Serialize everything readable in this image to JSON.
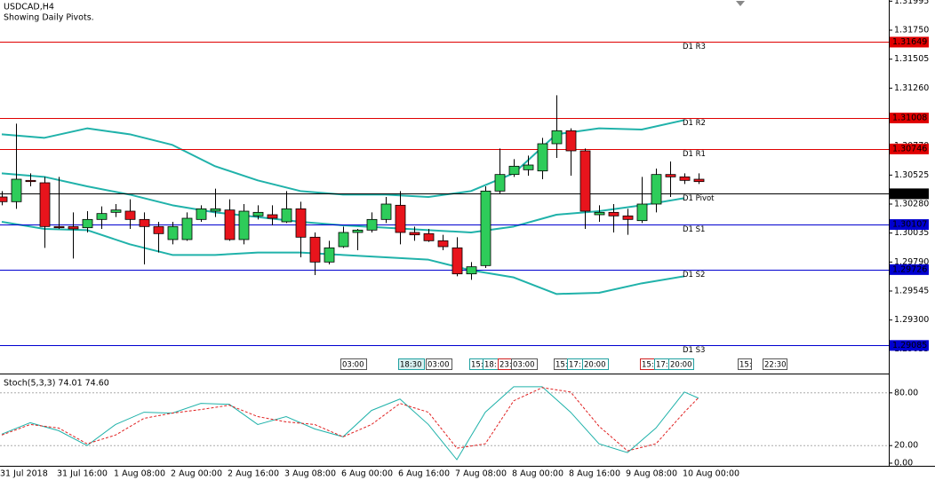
{
  "chart_data": [
    {
      "type": "candlestick",
      "title": "USDCAD,H4",
      "subtitle": "Showing Daily Pivots.",
      "categories": [
        "31 Jul 2018",
        null,
        null,
        null,
        "31 Jul 16:00",
        null,
        null,
        null,
        "1 Aug 08:00",
        null,
        null,
        null,
        "2 Aug 00:00",
        null,
        null,
        null,
        "2 Aug 16:00",
        null,
        null,
        null,
        "3 Aug 08:00",
        null,
        null,
        null,
        "6 Aug 00:00",
        null,
        null,
        null,
        "6 Aug 16:00",
        null,
        null,
        null,
        "7 Aug 08:00",
        null,
        null,
        null,
        "8 Aug 00:00",
        null,
        null,
        null,
        "8 Aug 16:00",
        null,
        null,
        null,
        "9 Aug 08:00",
        null,
        null,
        null,
        "10 Aug 00:00",
        null
      ],
      "open": [
        1.3034,
        1.303,
        1.3048,
        1.3046,
        1.3009,
        1.3009,
        1.3008,
        1.3015,
        1.3021,
        1.3022,
        1.3015,
        1.3009,
        1.2998,
        1.2998,
        1.3015,
        1.3022,
        1.3023,
        1.2998,
        1.3018,
        1.3019,
        1.3013,
        1.3024,
        1.3,
        1.2979,
        1.2992,
        1.3004,
        1.3006,
        1.3015,
        1.3027,
        1.3004,
        1.3003,
        1.2997,
        1.2991,
        1.2969,
        1.2976,
        1.3039,
        1.3053,
        1.3057,
        1.3056,
        1.3079,
        1.309,
        1.3073,
        1.3019,
        1.3021,
        1.3018,
        1.3014,
        1.3028,
        1.3053,
        1.3051,
        1.3049
      ],
      "high": [
        1.3039,
        1.3096,
        1.3054,
        1.3051,
        1.3051,
        1.3021,
        1.3022,
        1.3026,
        1.3028,
        1.3032,
        1.3021,
        1.3013,
        1.3013,
        1.3021,
        1.3027,
        1.3041,
        1.3032,
        1.3028,
        1.3027,
        1.3027,
        1.3039,
        1.303,
        1.3004,
        1.2997,
        1.3009,
        1.3007,
        1.3021,
        1.3034,
        1.3039,
        1.3009,
        1.3007,
        1.3002,
        1.3,
        1.2979,
        1.3043,
        1.3075,
        1.3066,
        1.3069,
        1.3084,
        1.312,
        1.3092,
        1.3075,
        1.3027,
        1.3028,
        1.3024,
        1.3051,
        1.3058,
        1.3064,
        1.3054,
        1.3054
      ],
      "low": [
        1.3027,
        1.3024,
        1.3043,
        1.2991,
        1.3007,
        1.2982,
        1.3004,
        1.3007,
        1.3017,
        1.3007,
        1.2977,
        1.2987,
        1.2994,
        1.2997,
        1.3013,
        1.3017,
        1.2997,
        1.2994,
        1.3015,
        1.301,
        1.3012,
        1.2983,
        1.2968,
        1.2977,
        1.2991,
        1.2989,
        1.3004,
        1.3012,
        1.2994,
        1.2997,
        1.2996,
        1.2989,
        1.2967,
        1.2964,
        1.2974,
        1.3037,
        1.3051,
        1.3052,
        1.3049,
        1.3067,
        1.3052,
        1.3007,
        1.3013,
        1.3004,
        1.3002,
        1.3012,
        1.3021,
        1.3034,
        1.3045,
        1.3045
      ],
      "close": [
        1.303,
        1.3049,
        1.3047,
        1.3009,
        1.3008,
        1.3007,
        1.3015,
        1.302,
        1.3023,
        1.3015,
        1.3009,
        1.3003,
        1.3009,
        1.3016,
        1.3024,
        1.3024,
        1.2998,
        1.3022,
        1.3021,
        1.3016,
        1.3024,
        1.3,
        1.2979,
        1.2991,
        1.3004,
        1.3006,
        1.3015,
        1.3028,
        1.3004,
        1.3002,
        1.2997,
        1.2992,
        1.2969,
        1.2975,
        1.3039,
        1.3053,
        1.306,
        1.3061,
        1.3079,
        1.309,
        1.3073,
        1.3022,
        1.3021,
        1.3018,
        1.3015,
        1.3028,
        1.3053,
        1.3051,
        1.3048,
        1.3047
      ],
      "up_color": "#2ecc5a",
      "down_color": "#e8141c",
      "ylim": [
        1.28855,
        1.32005
      ],
      "yticks": [
        1.31995,
        {
          "value": 1.3175,
          "label": "1.31750"
        },
        1.31505,
        {
          "value": 1.3126,
          "label": "1.31260"
        },
        1.31015,
        {
          "value": 1.3077,
          "label": "1.30770"
        },
        1.30525,
        {
          "value": 1.3028,
          "label": "1.30280"
        },
        1.30035,
        {
          "value": 1.2979,
          "label": "1.29790"
        },
        1.29545,
        {
          "value": 1.293,
          "label": "1.29300"
        },
        1.29055
      ],
      "bands": {
        "color": "#20b2aa",
        "x": [
          0,
          3,
          6,
          9,
          12,
          15,
          18,
          21,
          24,
          27,
          30,
          33,
          36,
          39,
          42,
          45,
          48
        ],
        "upper": [
          1.3087,
          1.3084,
          1.3092,
          1.3087,
          1.3078,
          1.306,
          1.3048,
          1.3039,
          1.3036,
          1.3036,
          1.3034,
          1.3039,
          1.3054,
          1.3087,
          1.3092,
          1.3091,
          1.3099
        ],
        "middle": [
          1.3054,
          1.3051,
          1.3043,
          1.3036,
          1.3027,
          1.3021,
          1.3017,
          1.3013,
          1.301,
          1.3008,
          1.3006,
          1.3004,
          1.3009,
          1.3019,
          1.3022,
          1.3027,
          1.3033
        ],
        "lower": [
          1.3013,
          1.3007,
          1.3006,
          1.2994,
          1.2985,
          1.2985,
          1.2987,
          1.2987,
          1.2985,
          1.2983,
          1.2981,
          1.2972,
          1.2966,
          1.2952,
          1.2953,
          1.2961,
          1.2967
        ]
      },
      "pivots": [
        {
          "label": "D1 R3",
          "value": 1.31649,
          "color": "#e00000"
        },
        {
          "label": "D1 R2",
          "value": 1.31008,
          "color": "#e00000"
        },
        {
          "label": "D1 R1",
          "value": 1.30746,
          "color": "#e00000"
        },
        {
          "label": "D1 Pivot",
          "value": 1.30367,
          "color": "#000000"
        },
        {
          "label": "D1 S1",
          "value": 1.30107,
          "color": "#0000d0"
        },
        {
          "label": "D1 S2",
          "value": 1.29726,
          "color": "#0000d0"
        },
        {
          "label": "D1 S3",
          "value": 1.29085,
          "color": "#0000d0"
        }
      ],
      "session_labels": [
        "03:00",
        "18:30",
        "03:00",
        "15:",
        "18:",
        "23:",
        "03:00",
        "15:",
        "17:",
        "20:00",
        "15:",
        "17:",
        "20:00",
        "15:",
        "22:30"
      ]
    },
    {
      "type": "line",
      "title": "Stoch(5,3,3) 74.01 74.60",
      "x": [
        0,
        2,
        4,
        6,
        8,
        10,
        12,
        14,
        16,
        18,
        20,
        22,
        24,
        26,
        28,
        30,
        32,
        34,
        36,
        38,
        40,
        42,
        44,
        46,
        48,
        49
      ],
      "series": [
        {
          "color": "#20b2aa",
          "values": [
            33,
            46,
            37,
            20,
            44,
            58,
            57,
            68,
            67,
            44,
            53,
            39,
            30,
            60,
            73,
            44,
            4,
            58,
            87,
            87,
            58,
            22,
            12,
            40,
            81,
            74.01
          ]
        },
        {
          "color": "#e02020",
          "dashed": true,
          "values": [
            32,
            44,
            40,
            22,
            32,
            51,
            57,
            61,
            66,
            53,
            47,
            44,
            30,
            44,
            68,
            58,
            17,
            22,
            71,
            86,
            81,
            42,
            14,
            22,
            58,
            74.6
          ]
        }
      ],
      "ylim": [
        0,
        100
      ],
      "yticks": [
        {
          "value": 80,
          "label": "80.00"
        },
        {
          "value": 20,
          "label": "20.00"
        },
        {
          "value": 0,
          "label": "0.00"
        }
      ],
      "grid": true
    }
  ]
}
